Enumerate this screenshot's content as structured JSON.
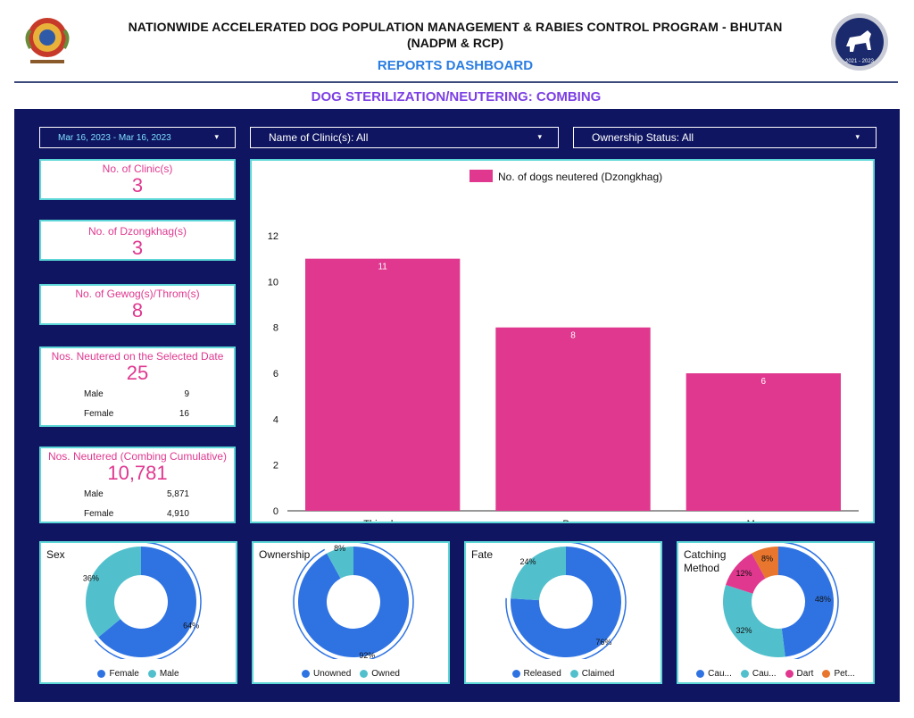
{
  "header": {
    "title_line1": "NATIONWIDE ACCELERATED DOG POPULATION MANAGEMENT & RABIES CONTROL PROGRAM - BHUTAN",
    "title_line2": "(NADPM & RCP)",
    "dashboard_title": "REPORTS DASHBOARD",
    "logo_right_text": "2021 - 2023"
  },
  "subtitle": "DOG STERILIZATION/NEUTERING: COMBING",
  "filters": {
    "date": "Mar 16, 2023 - Mar 16, 2023",
    "clinic": "Name of Clinic(s): All",
    "ownership": "Ownership Status: All"
  },
  "kpis": {
    "clinics": {
      "label": "No. of Clinic(s)",
      "value": "3"
    },
    "dzongkhags": {
      "label": "No. of Dzongkhag(s)",
      "value": "3"
    },
    "gewogs": {
      "label": "No. of Gewog(s)/Throm(s)",
      "value": "8"
    },
    "selected_date": {
      "label": "Nos. Neutered on the Selected Date",
      "value": "25",
      "male_label": "Male",
      "male": "9",
      "female_label": "Female",
      "female": "16"
    },
    "cumulative": {
      "label": "Nos. Neutered (Combing Cumulative)",
      "value": "10,781",
      "male_label": "Male",
      "male": "5,871",
      "female_label": "Female",
      "female": "4,910"
    }
  },
  "chart_data": [
    {
      "type": "bar",
      "categories": [
        "Thimphu",
        "Paro",
        "Mongar"
      ],
      "series": [
        {
          "name": "No. of dogs neutered (Dzongkhag)",
          "values": [
            11,
            8,
            6
          ]
        }
      ],
      "ylim": [
        0,
        12
      ],
      "yticks": [
        0,
        2,
        4,
        6,
        8,
        10,
        12
      ],
      "color": "#e0388f",
      "legend": "top"
    },
    {
      "type": "pie",
      "title": "Sex",
      "categories": [
        "Female",
        "Male"
      ],
      "values": [
        64,
        36
      ],
      "labels": [
        "64%",
        "36%"
      ],
      "colors": [
        "#2f73e3",
        "#52c0cc"
      ]
    },
    {
      "type": "pie",
      "title": "Ownership",
      "categories": [
        "Unowned",
        "Owned"
      ],
      "values": [
        92,
        8
      ],
      "labels": [
        "92%",
        "8%"
      ],
      "colors": [
        "#2f73e3",
        "#52c0cc"
      ]
    },
    {
      "type": "pie",
      "title": "Fate",
      "categories": [
        "Released",
        "Claimed"
      ],
      "values": [
        76,
        24
      ],
      "labels": [
        "76%",
        "24%"
      ],
      "colors": [
        "#2f73e3",
        "#52c0cc"
      ]
    },
    {
      "type": "pie",
      "title": "Catching Method",
      "categories": [
        "Cau...",
        "Cau...",
        "Dart",
        "Pet..."
      ],
      "values": [
        48,
        32,
        12,
        8
      ],
      "labels": [
        "48%",
        "32%",
        "12%",
        "8%"
      ],
      "colors": [
        "#2f73e3",
        "#52c0cc",
        "#e0388f",
        "#e8762e"
      ]
    }
  ]
}
